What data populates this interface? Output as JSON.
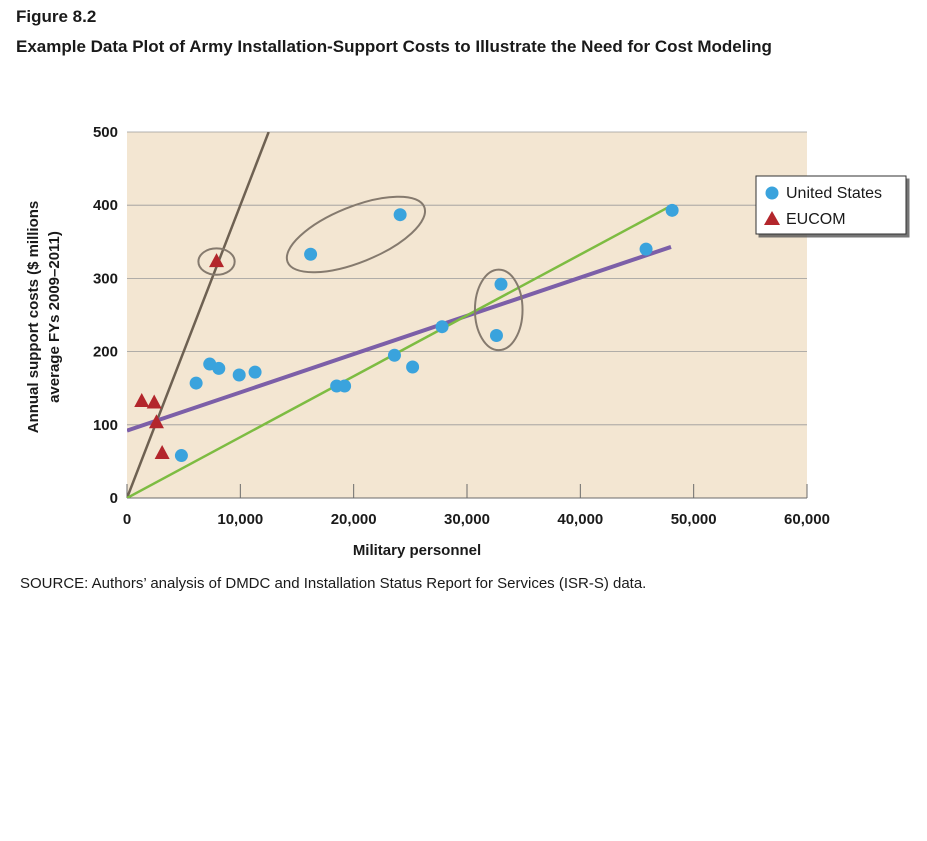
{
  "figure": {
    "label": "Figure 8.2",
    "title": "Example Data Plot of Army Installation-Support Costs to Illustrate the Need for Cost Modeling",
    "source": "SOURCE: Authors’ analysis of DMDC and Installation Status Report for Services (ISR-S) data."
  },
  "chart_data": {
    "type": "scatter",
    "xlabel": "Military personnel",
    "ylabel_line1": "Annual support costs ($ millions",
    "ylabel_line2": "average FYs 2009–2011)",
    "xlim": [
      0,
      60000
    ],
    "ylim": [
      0,
      500
    ],
    "x_ticks": [
      0,
      10000,
      20000,
      30000,
      40000,
      50000,
      60000
    ],
    "x_tick_labels": [
      "0",
      "10,000",
      "20,000",
      "30,000",
      "40,000",
      "50,000",
      "60,000"
    ],
    "y_ticks": [
      0,
      100,
      200,
      300,
      400,
      500
    ],
    "y_tick_labels": [
      "0",
      "100",
      "200",
      "300",
      "400",
      "500"
    ],
    "grid": "horizontal",
    "legend_position": "top-right",
    "background_color": "#f3e6d2",
    "series": [
      {
        "name": "United States",
        "marker": "circle",
        "color": "#3aa3dd",
        "points": [
          [
            4800,
            58
          ],
          [
            6100,
            157
          ],
          [
            7300,
            183
          ],
          [
            8100,
            177
          ],
          [
            9900,
            168
          ],
          [
            11300,
            172
          ],
          [
            16200,
            333
          ],
          [
            18500,
            153
          ],
          [
            19200,
            153
          ],
          [
            23600,
            195
          ],
          [
            24100,
            387
          ],
          [
            25200,
            179
          ],
          [
            27800,
            234
          ],
          [
            32600,
            222
          ],
          [
            33000,
            292
          ],
          [
            45800,
            340
          ],
          [
            48100,
            393
          ]
        ]
      },
      {
        "name": "EUCOM",
        "marker": "triangle",
        "color": "#b3262c",
        "points": [
          [
            1300,
            132
          ],
          [
            2400,
            130
          ],
          [
            2600,
            103
          ],
          [
            3100,
            61
          ],
          [
            7900,
            323
          ]
        ]
      }
    ],
    "lines": [
      {
        "color": "#6e6152",
        "from": [
          0,
          0
        ],
        "to": [
          12500,
          500
        ]
      },
      {
        "color": "#7c5fa8",
        "from": [
          0,
          92
        ],
        "to": [
          48000,
          343
        ]
      },
      {
        "color": "#7dbc42",
        "from": [
          0,
          0
        ],
        "to": [
          48100,
          400
        ]
      }
    ],
    "highlight_ellipses": [
      {
        "center": [
          7900,
          323
        ],
        "rx": 1600,
        "ry": 18
      },
      {
        "center": [
          20200,
          360
        ],
        "rx": 6500,
        "ry": 38,
        "rotate_deg": -22
      },
      {
        "center": [
          32800,
          257
        ],
        "rx": 2100,
        "ry": 55
      }
    ]
  }
}
